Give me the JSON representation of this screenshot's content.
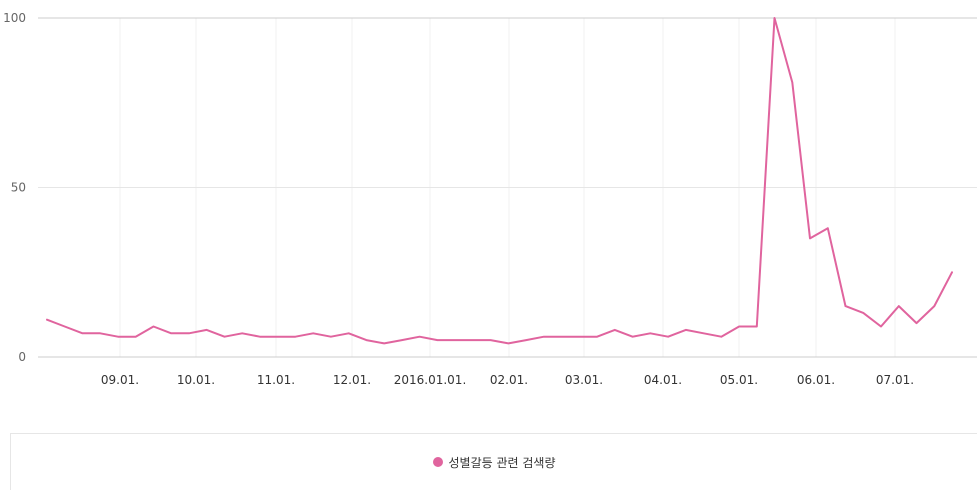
{
  "chart_data": {
    "type": "line",
    "title": "",
    "xlabel": "",
    "ylabel": "",
    "ylim": [
      0,
      100
    ],
    "yticks": [
      0,
      50,
      100
    ],
    "xticks": [
      "09.01.",
      "10.01.",
      "11.01.",
      "12.01.",
      "2016.01.01.",
      "02.01.",
      "03.01.",
      "04.01.",
      "05.01.",
      "06.01.",
      "07.01."
    ],
    "grid": true,
    "legend_position": "bottom",
    "series": [
      {
        "name": "성별갈등 관련 검색량",
        "color": "#e0649e",
        "values": [
          11,
          9,
          7,
          7,
          6,
          6,
          9,
          7,
          7,
          8,
          6,
          7,
          6,
          6,
          6,
          7,
          6,
          7,
          5,
          4,
          5,
          6,
          5,
          5,
          5,
          5,
          4,
          5,
          6,
          6,
          6,
          6,
          8,
          6,
          7,
          6,
          8,
          7,
          6,
          9,
          9,
          100,
          81,
          35,
          38,
          15,
          13,
          9,
          15,
          10,
          15,
          25
        ]
      }
    ]
  },
  "legend": {
    "label": "성별갈등 관련 검색량",
    "color": "#e0649e"
  }
}
